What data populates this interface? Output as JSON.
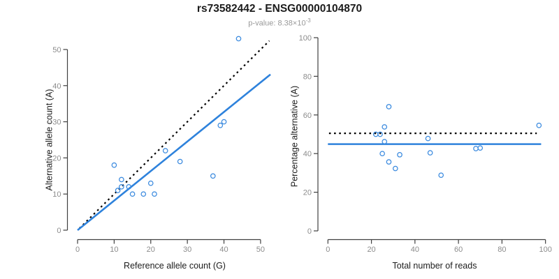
{
  "header": {
    "title": "rs73582442 - ENSG00000104870",
    "subtitle_prefix": "p-value: 8.38×10",
    "subtitle_exponent": "-3"
  },
  "colors": {
    "line_blue": "#2E82DC",
    "point_blue": "#3A8ADF",
    "dotted_black": "#000000",
    "axis": "#404040",
    "tick_label": "#8C8C8C",
    "subtitle_gray": "#999999",
    "title_color": "#1C1C1C",
    "background": "#FFFFFF"
  },
  "chart_data": [
    {
      "type": "scatter",
      "position": "left",
      "xlabel": "Reference allele count (G)",
      "ylabel": "Alternative allele count (A)",
      "xlim": [
        0,
        52.5
      ],
      "ylim": [
        0,
        53.6
      ],
      "xticks": [
        0,
        10,
        20,
        30,
        40,
        50
      ],
      "yticks": [
        0,
        10,
        20,
        30,
        40,
        50
      ],
      "grid": false,
      "legend": null,
      "point_color": "#3A8ADF",
      "points": [
        [
          10,
          18
        ],
        [
          11,
          11
        ],
        [
          12,
          12
        ],
        [
          12,
          14
        ],
        [
          14,
          12
        ],
        [
          15,
          10
        ],
        [
          18,
          10
        ],
        [
          20,
          13
        ],
        [
          21,
          10
        ],
        [
          24,
          22
        ],
        [
          28,
          19
        ],
        [
          37,
          15
        ],
        [
          39,
          29
        ],
        [
          40,
          30
        ],
        [
          44,
          53
        ]
      ],
      "lines": [
        {
          "name": "identity-line",
          "style": "dotted",
          "color": "#000000",
          "x1": 0.5,
          "y1": 0.5,
          "x2": 52.4,
          "y2": 52.4
        },
        {
          "name": "regression-line",
          "style": "solid",
          "color": "#2E82DC",
          "x1": 0,
          "y1": 0,
          "x2": 52.7,
          "y2": 43.1
        }
      ]
    },
    {
      "type": "scatter",
      "position": "right",
      "xlabel": "Total number of reads",
      "ylabel": "Percentage alternative (A)",
      "xlim": [
        0,
        100
      ],
      "ylim": [
        0,
        100
      ],
      "xticks": [
        0,
        20,
        40,
        60,
        80,
        100
      ],
      "yticks": [
        0,
        20,
        40,
        60,
        80,
        100
      ],
      "grid": false,
      "legend": null,
      "point_color": "#3A8ADF",
      "points": [
        [
          22,
          50
        ],
        [
          24,
          50
        ],
        [
          25,
          40
        ],
        [
          26,
          53.8
        ],
        [
          26,
          46.2
        ],
        [
          28,
          64.3
        ],
        [
          28,
          35.7
        ],
        [
          31,
          32.3
        ],
        [
          33,
          39.4
        ],
        [
          46,
          47.8
        ],
        [
          47,
          40.4
        ],
        [
          52,
          28.8
        ],
        [
          68,
          42.6
        ],
        [
          70,
          42.9
        ],
        [
          97,
          54.6
        ]
      ],
      "lines": [
        {
          "name": "expected-percentage-line",
          "style": "dotted",
          "color": "#000000",
          "x1": 0.5,
          "y1": 50.5,
          "x2": 96,
          "y2": 50.5
        },
        {
          "name": "mean-percentage-line",
          "style": "solid",
          "color": "#2E82DC",
          "x1": 0,
          "y1": 44.9,
          "x2": 98,
          "y2": 44.9
        }
      ]
    }
  ]
}
